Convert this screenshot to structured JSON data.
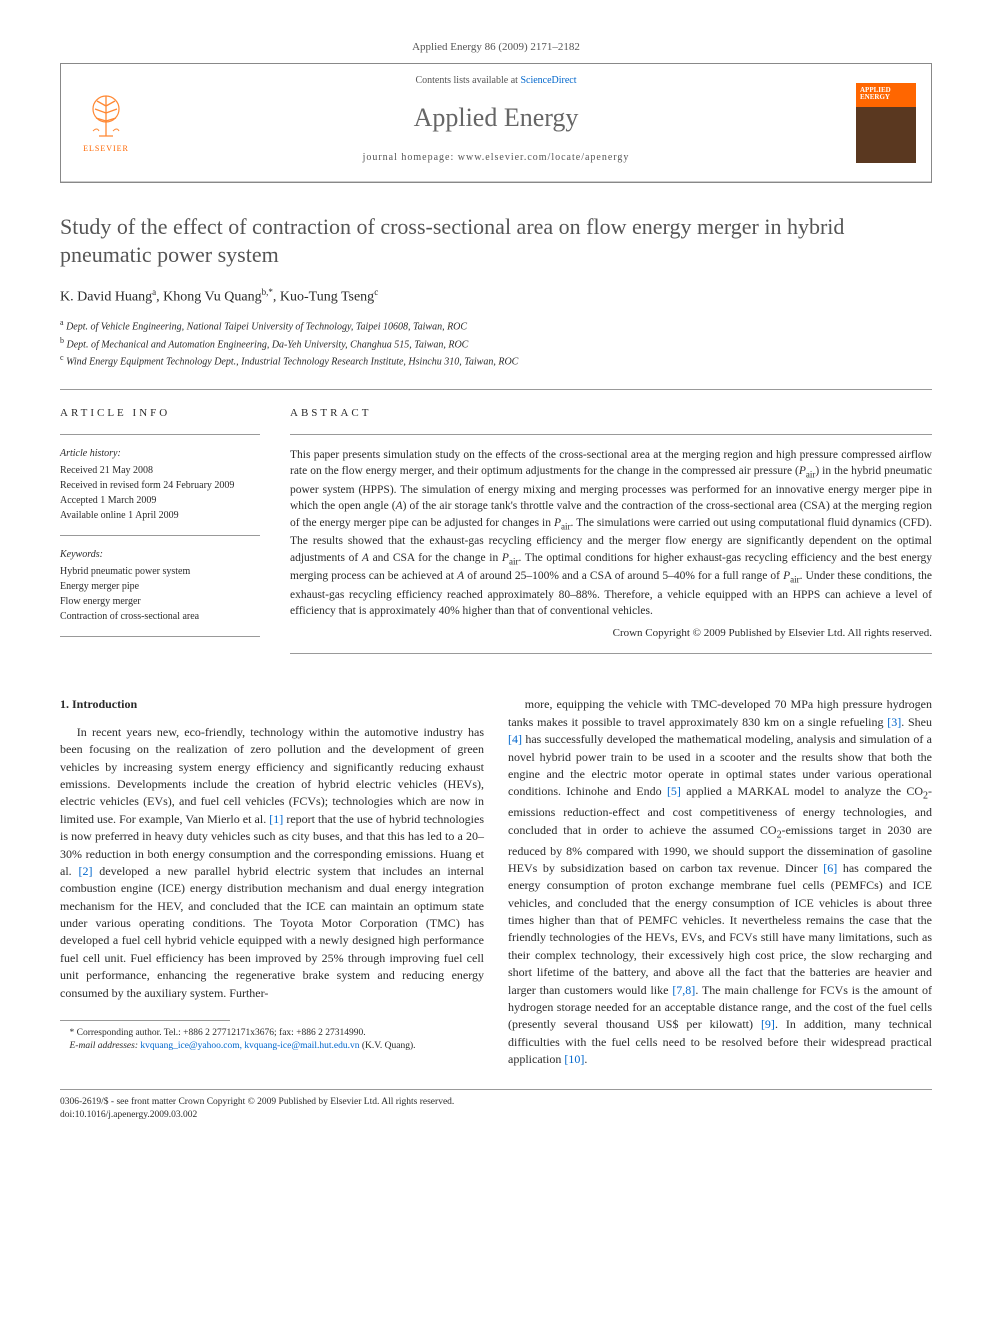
{
  "citation": "Applied Energy 86 (2009) 2171–2182",
  "header": {
    "contents_prefix": "Contents lists available at ",
    "sciencedirect": "ScienceDirect",
    "journal_name": "Applied Energy",
    "homepage_prefix": "journal homepage: ",
    "homepage_url": "www.elsevier.com/locate/apenergy",
    "elsevier_label": "ELSEVIER",
    "cover_text": "APPLIED ENERGY"
  },
  "title": "Study of the effect of contraction of cross-sectional area on flow energy merger in hybrid pneumatic power system",
  "authors_html": "K. David Huang<sup class='author-sup'>a</sup>, Khong Vu Quang<sup class='author-sup'>b,*</sup>, Kuo-Tung Tseng<sup class='author-sup'>c</sup>",
  "affiliations": [
    {
      "sup": "a",
      "text": "Dept. of Vehicle Engineering, National Taipei University of Technology, Taipei 10608, Taiwan, ROC"
    },
    {
      "sup": "b",
      "text": "Dept. of Mechanical and Automation Engineering, Da-Yeh University, Changhua 515, Taiwan, ROC"
    },
    {
      "sup": "c",
      "text": "Wind Energy Equipment Technology Dept., Industrial Technology Research Institute, Hsinchu 310, Taiwan, ROC"
    }
  ],
  "article_info": {
    "heading": "ARTICLE INFO",
    "history_heading": "Article history:",
    "history": [
      "Received 21 May 2008",
      "Received in revised form 24 February 2009",
      "Accepted 1 March 2009",
      "Available online 1 April 2009"
    ],
    "keywords_heading": "Keywords:",
    "keywords": [
      "Hybrid pneumatic power system",
      "Energy merger pipe",
      "Flow energy merger",
      "Contraction of cross-sectional area"
    ]
  },
  "abstract": {
    "heading": "ABSTRACT",
    "text_html": "This paper presents simulation study on the effects of the cross-sectional area at the merging region and high pressure compressed airflow rate on the flow energy merger, and their optimum adjustments for the change in the compressed air pressure (<i>P</i><sub class='abstract-sub'>air</sub>) in the hybrid pneumatic power system (HPPS). The simulation of energy mixing and merging processes was performed for an innovative energy merger pipe in which the open angle (<i>A</i>) of the air storage tank's throttle valve and the contraction of the cross-sectional area (CSA) at the merging region of the energy merger pipe can be adjusted for changes in <i>P</i><sub class='abstract-sub'>air</sub>. The simulations were carried out using computational fluid dynamics (CFD). The results showed that the exhaust-gas recycling efficiency and the merger flow energy are significantly dependent on the optimal adjustments of <i>A</i> and CSA for the change in <i>P</i><sub class='abstract-sub'>air</sub>. The optimal conditions for higher exhaust-gas recycling efficiency and the best energy merging process can be achieved at <i>A</i> of around 25–100% and a CSA of around 5–40% for a full range of <i>P</i><sub class='abstract-sub'>air</sub>. Under these conditions, the exhaust-gas recycling efficiency reached approximately 80–88%. Therefore, a vehicle equipped with an HPPS can achieve a level of efficiency that is approximately 40% higher than that of conventional vehicles.",
    "copyright": "Crown Copyright © 2009 Published by Elsevier Ltd. All rights reserved."
  },
  "body": {
    "section_heading": "1. Introduction",
    "col1_html": "In recent years new, eco-friendly, technology within the automotive industry has been focusing on the realization of zero pollution and the development of green vehicles by increasing system energy efficiency and significantly reducing exhaust emissions. Developments include the creation of hybrid electric vehicles (HEVs), electric vehicles (EVs), and fuel cell vehicles (FCVs); technologies which are now in limited use. For example, Van Mierlo et al. <span class='ref-link'>[1]</span> report that the use of hybrid technologies is now preferred in heavy duty vehicles such as city buses, and that this has led to a 20–30% reduction in both energy consumption and the corresponding emissions. Huang et al. <span class='ref-link'>[2]</span> developed a new parallel hybrid electric system that includes an internal combustion engine (ICE) energy distribution mechanism and dual energy integration mechanism for the HEV, and concluded that the ICE can maintain an optimum state under various operating conditions. The Toyota Motor Corporation (TMC) has developed a fuel cell hybrid vehicle equipped with a newly designed high performance fuel cell unit. Fuel efficiency has been improved by 25% through improving fuel cell unit performance, enhancing the regenerative brake system and reducing energy consumed by the auxiliary system. Further-",
    "col2_html": "more, equipping the vehicle with TMC-developed 70 MPa high pressure hydrogen tanks makes it possible to travel approximately 830 km on a single refueling <span class='ref-link'>[3]</span>. Sheu <span class='ref-link'>[4]</span> has successfully developed the mathematical modeling, analysis and simulation of a novel hybrid power train to be used in a scooter and the results show that both the engine and the electric motor operate in optimal states under various operational conditions. Ichinohe and Endo <span class='ref-link'>[5]</span> applied a MARKAL model to analyze the CO<sub>2</sub>-emissions reduction-effect and cost competitiveness of energy technologies, and concluded that in order to achieve the assumed CO<sub>2</sub>-emissions target in 2030 are reduced by 8% compared with 1990, we should support the dissemination of gasoline HEVs by subsidization based on carbon tax revenue. Dincer <span class='ref-link'>[6]</span> has compared the energy consumption of proton exchange membrane fuel cells (PEMFCs) and ICE vehicles, and concluded that the energy consumption of ICE vehicles is about three times higher than that of PEMFC vehicles. It nevertheless remains the case that the friendly technologies of the HEVs, EVs, and FCVs still have many limitations, such as their complex technology, their excessively high cost price, the slow recharging and short lifetime of the battery, and above all the fact that the batteries are heavier and larger than customers would like <span class='ref-link'>[7,8]</span>. The main challenge for FCVs is the amount of hydrogen storage needed for an acceptable distance range, and the cost of the fuel cells (presently several thousand US$ per kilowatt) <span class='ref-link'>[9]</span>. In addition, many technical difficulties with the fuel cells need to be resolved before their widespread practical application <span class='ref-link'>[10]</span>."
  },
  "footnotes": {
    "corresponding": "* Corresponding author. Tel.: +886 2 27712171x3676; fax: +886 2 27314990.",
    "email_label": "E-mail addresses: ",
    "emails": "kvquang_ice@yahoo.com, kvquang-ice@mail.hut.edu.vn",
    "email_suffix": " (K.V. Quang)."
  },
  "footer": {
    "line1": "0306-2619/$ - see front matter Crown Copyright © 2009 Published by Elsevier Ltd. All rights reserved.",
    "line2": "doi:10.1016/j.apenergy.2009.03.002"
  },
  "colors": {
    "link": "#0066cc",
    "elsevier_orange": "#ff6600",
    "text": "#2a2a2a",
    "muted": "#555555"
  }
}
